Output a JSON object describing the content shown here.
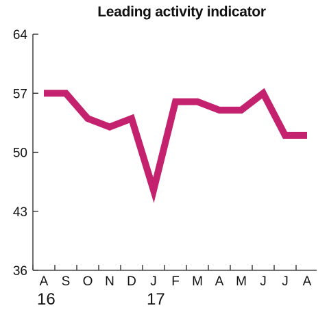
{
  "chart_data": {
    "type": "line",
    "title": "Leading activity indicator",
    "xlabel": "",
    "ylabel": "",
    "categories": [
      "A",
      "S",
      "O",
      "N",
      "D",
      "J",
      "F",
      "M",
      "A",
      "M",
      "J",
      "J",
      "A"
    ],
    "year_labels": [
      {
        "index": 0,
        "label": "16"
      },
      {
        "index": 5,
        "label": "17"
      }
    ],
    "series": [
      {
        "values": [
          57,
          57,
          54,
          53,
          54,
          45.5,
          56,
          56,
          55,
          55,
          57,
          52,
          52
        ]
      }
    ],
    "ylim": [
      36,
      64
    ],
    "yticks": [
      36,
      43,
      50,
      57,
      64
    ],
    "grid": false,
    "legend": "none",
    "colors": {
      "line": "#C4226E",
      "axis": "#222222"
    }
  }
}
